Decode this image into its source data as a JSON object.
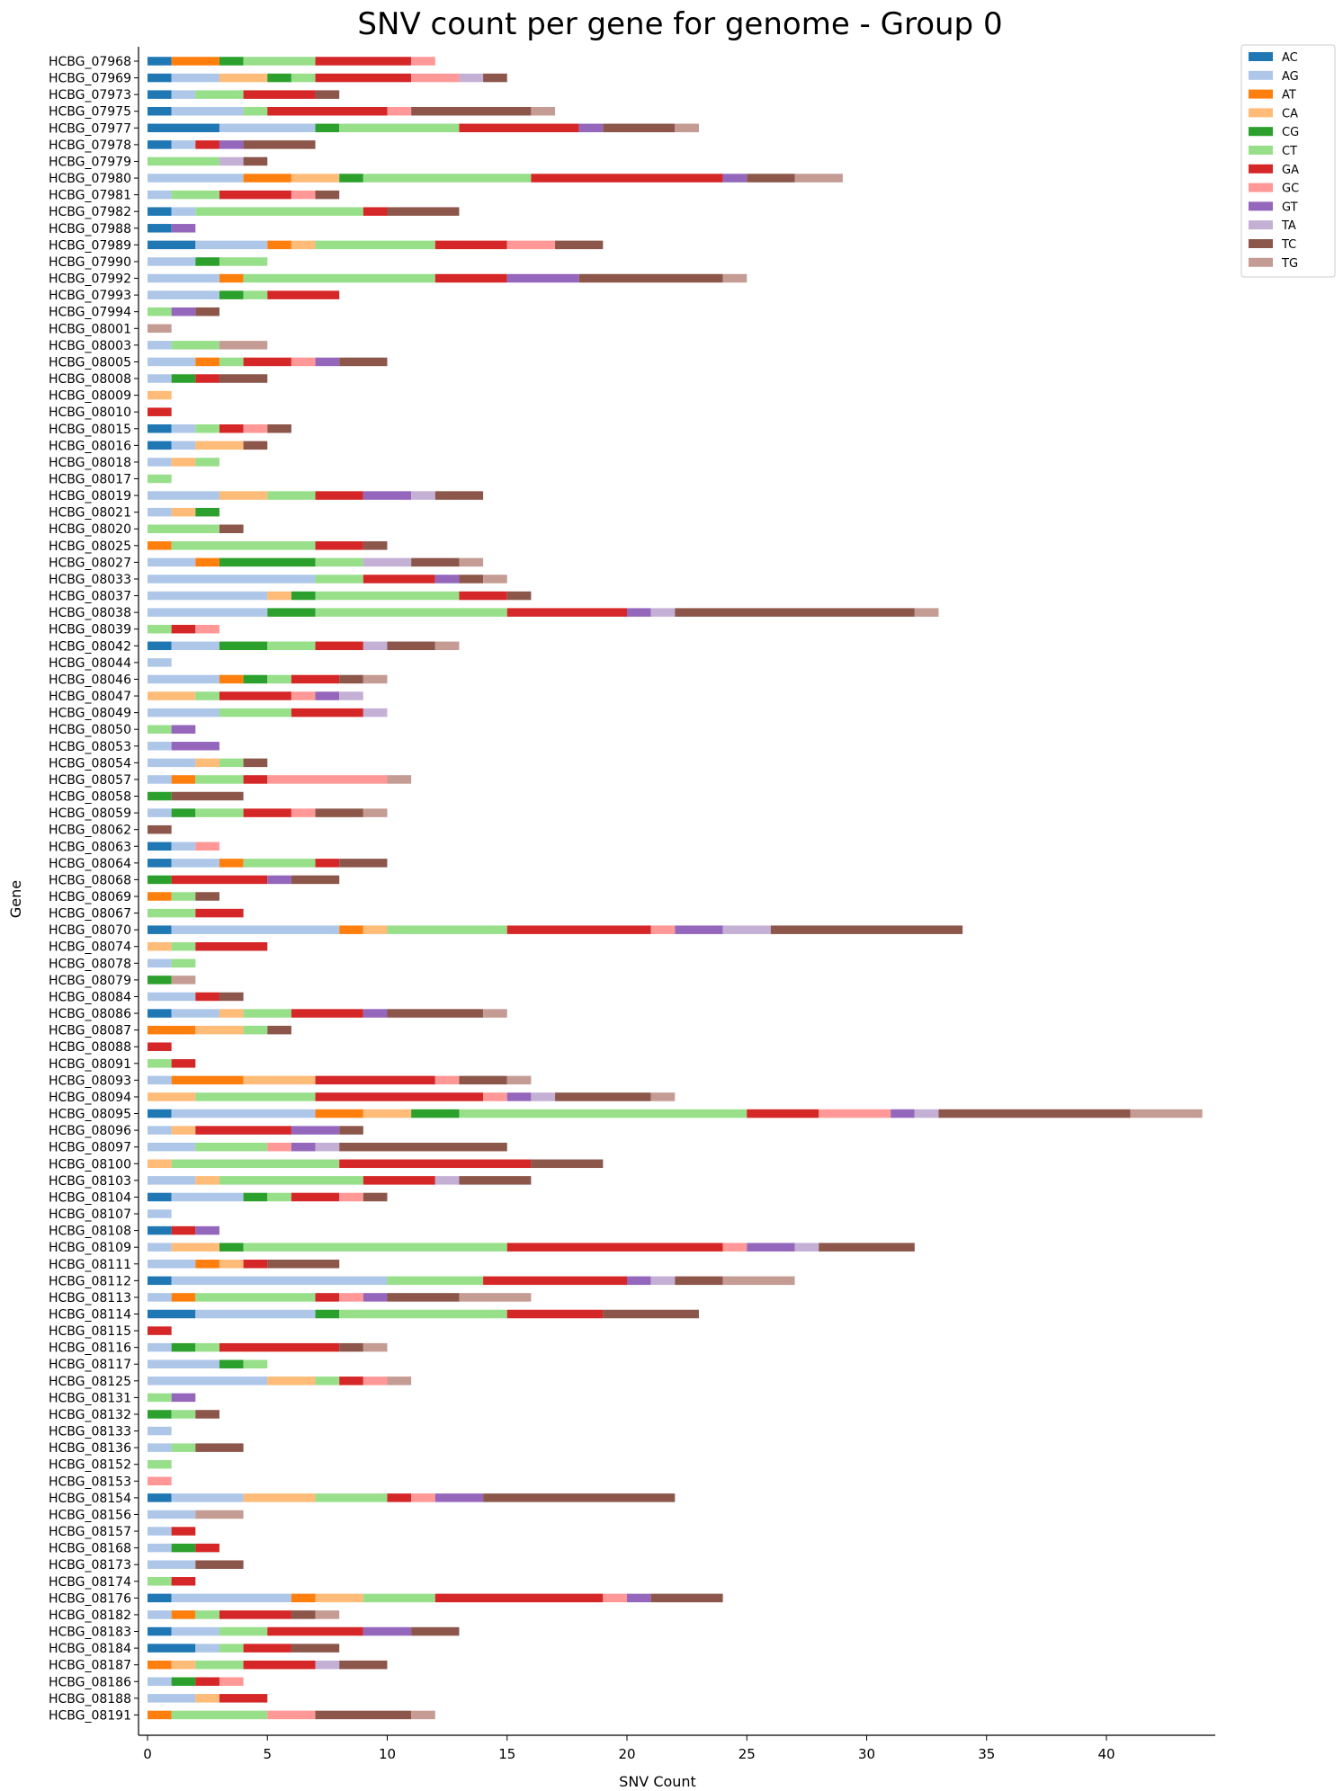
{
  "chart_data": {
    "type": "bar",
    "orientation": "horizontal",
    "stacked": true,
    "title": "SNV count per gene for genome - Group 0",
    "xlabel": "SNV Count",
    "ylabel": "Gene",
    "xlim": [
      0,
      44
    ],
    "xticks": [
      0,
      5,
      10,
      15,
      20,
      25,
      30,
      35,
      40
    ],
    "grid": false,
    "legend_position": "top-right outside",
    "series_order": [
      "AC",
      "AG",
      "AT",
      "CA",
      "CG",
      "CT",
      "GA",
      "GC",
      "GT",
      "TA",
      "TC",
      "TG"
    ],
    "series_colors": {
      "AC": "#1f77b4",
      "AG": "#aec7e8",
      "AT": "#ff7f0e",
      "CA": "#ffbb78",
      "CG": "#2ca02c",
      "CT": "#98df8a",
      "GA": "#d62728",
      "GC": "#ff9896",
      "GT": "#9467bd",
      "TA": "#c5b0d5",
      "TC": "#8c564b",
      "TG": "#c49c94"
    },
    "genes": [
      {
        "name": "HCBG_07968",
        "counts": {
          "AC": 1,
          "AT": 2,
          "CG": 1,
          "CT": 3,
          "GA": 4,
          "GC": 1
        }
      },
      {
        "name": "HCBG_07969",
        "counts": {
          "AC": 1,
          "AG": 2,
          "CA": 2,
          "CG": 1,
          "CT": 1,
          "GA": 4,
          "GC": 2,
          "TA": 1,
          "TC": 1
        }
      },
      {
        "name": "HCBG_07973",
        "counts": {
          "AC": 1,
          "AG": 1,
          "CT": 2,
          "GA": 3,
          "TC": 1
        }
      },
      {
        "name": "HCBG_07975",
        "counts": {
          "AC": 1,
          "AG": 3,
          "CT": 1,
          "GA": 5,
          "GC": 1,
          "TC": 5,
          "TG": 1
        }
      },
      {
        "name": "HCBG_07977",
        "counts": {
          "AC": 3,
          "AG": 4,
          "CG": 1,
          "CT": 5,
          "GA": 5,
          "GT": 1,
          "TC": 3,
          "TG": 1
        }
      },
      {
        "name": "HCBG_07978",
        "counts": {
          "AC": 1,
          "AG": 1,
          "GA": 1,
          "GT": 1,
          "TC": 3
        }
      },
      {
        "name": "HCBG_07979",
        "counts": {
          "CT": 3,
          "TA": 1,
          "TC": 1
        }
      },
      {
        "name": "HCBG_07980",
        "counts": {
          "AG": 4,
          "AT": 2,
          "CA": 2,
          "CG": 1,
          "CT": 7,
          "GA": 8,
          "GT": 1,
          "TC": 2,
          "TG": 2
        }
      },
      {
        "name": "HCBG_07981",
        "counts": {
          "AG": 1,
          "CT": 2,
          "GA": 3,
          "GC": 1,
          "TC": 1
        }
      },
      {
        "name": "HCBG_07982",
        "counts": {
          "AC": 1,
          "AG": 1,
          "CT": 7,
          "GA": 1,
          "TC": 3
        }
      },
      {
        "name": "HCBG_07988",
        "counts": {
          "AC": 1,
          "GT": 1
        }
      },
      {
        "name": "HCBG_07989",
        "counts": {
          "AC": 2,
          "AG": 3,
          "AT": 1,
          "CA": 1,
          "CT": 5,
          "GA": 3,
          "GC": 2,
          "TC": 2
        }
      },
      {
        "name": "HCBG_07990",
        "counts": {
          "AG": 2,
          "CG": 1,
          "CT": 2
        }
      },
      {
        "name": "HCBG_07992",
        "counts": {
          "AG": 3,
          "AT": 1,
          "CT": 8,
          "GA": 3,
          "GT": 3,
          "TC": 6,
          "TG": 1
        }
      },
      {
        "name": "HCBG_07993",
        "counts": {
          "AG": 3,
          "CG": 1,
          "CT": 1,
          "GA": 3
        }
      },
      {
        "name": "HCBG_07994",
        "counts": {
          "CT": 1,
          "GT": 1,
          "TC": 1
        }
      },
      {
        "name": "HCBG_08001",
        "counts": {
          "TG": 1
        }
      },
      {
        "name": "HCBG_08003",
        "counts": {
          "AG": 1,
          "CT": 2,
          "TG": 2
        }
      },
      {
        "name": "HCBG_08005",
        "counts": {
          "AG": 2,
          "AT": 1,
          "CT": 1,
          "GA": 2,
          "GC": 1,
          "GT": 1,
          "TC": 2
        }
      },
      {
        "name": "HCBG_08008",
        "counts": {
          "AG": 1,
          "CG": 1,
          "GA": 1,
          "TC": 2
        }
      },
      {
        "name": "HCBG_08009",
        "counts": {
          "CA": 1
        }
      },
      {
        "name": "HCBG_08010",
        "counts": {
          "GA": 1
        }
      },
      {
        "name": "HCBG_08015",
        "counts": {
          "AC": 1,
          "AG": 1,
          "CT": 1,
          "GA": 1,
          "GC": 1,
          "TC": 1
        }
      },
      {
        "name": "HCBG_08016",
        "counts": {
          "AC": 1,
          "AG": 1,
          "CA": 2,
          "TC": 1
        }
      },
      {
        "name": "HCBG_08018",
        "counts": {
          "AG": 1,
          "CA": 1,
          "CT": 1
        }
      },
      {
        "name": "HCBG_08017",
        "counts": {
          "CT": 1
        }
      },
      {
        "name": "HCBG_08019",
        "counts": {
          "AG": 3,
          "CA": 2,
          "CT": 2,
          "GA": 2,
          "GT": 2,
          "TA": 1,
          "TC": 2
        }
      },
      {
        "name": "HCBG_08021",
        "counts": {
          "AG": 1,
          "CA": 1,
          "CG": 1
        }
      },
      {
        "name": "HCBG_08020",
        "counts": {
          "CT": 3,
          "TC": 1
        }
      },
      {
        "name": "HCBG_08025",
        "counts": {
          "AT": 1,
          "CT": 6,
          "GA": 2,
          "TC": 1
        }
      },
      {
        "name": "HCBG_08027",
        "counts": {
          "AG": 2,
          "AT": 1,
          "CG": 4,
          "CT": 2,
          "TA": 2,
          "TC": 2,
          "TG": 1
        }
      },
      {
        "name": "HCBG_08033",
        "counts": {
          "AG": 7,
          "CT": 2,
          "GA": 3,
          "GT": 1,
          "TC": 1,
          "TG": 1
        }
      },
      {
        "name": "HCBG_08037",
        "counts": {
          "AG": 5,
          "CA": 1,
          "CG": 1,
          "CT": 6,
          "GA": 2,
          "TC": 1
        }
      },
      {
        "name": "HCBG_08038",
        "counts": {
          "AG": 5,
          "CG": 2,
          "CT": 8,
          "GA": 5,
          "GT": 1,
          "TA": 1,
          "TC": 10,
          "TG": 1
        }
      },
      {
        "name": "HCBG_08039",
        "counts": {
          "CT": 1,
          "GA": 1,
          "GC": 1
        }
      },
      {
        "name": "HCBG_08042",
        "counts": {
          "AC": 1,
          "AG": 2,
          "CG": 2,
          "CT": 2,
          "GA": 2,
          "TA": 1,
          "TC": 2,
          "TG": 1
        }
      },
      {
        "name": "HCBG_08044",
        "counts": {
          "AG": 1
        }
      },
      {
        "name": "HCBG_08046",
        "counts": {
          "AG": 3,
          "AT": 1,
          "CG": 1,
          "CT": 1,
          "GA": 2,
          "TC": 1,
          "TG": 1
        }
      },
      {
        "name": "HCBG_08047",
        "counts": {
          "CA": 2,
          "CT": 1,
          "GA": 3,
          "GC": 1,
          "GT": 1,
          "TA": 1
        }
      },
      {
        "name": "HCBG_08049",
        "counts": {
          "AG": 3,
          "CT": 3,
          "GA": 3,
          "TA": 1
        }
      },
      {
        "name": "HCBG_08050",
        "counts": {
          "CT": 1,
          "GT": 1
        }
      },
      {
        "name": "HCBG_08053",
        "counts": {
          "AG": 1,
          "GT": 2
        }
      },
      {
        "name": "HCBG_08054",
        "counts": {
          "AG": 2,
          "CA": 1,
          "CT": 1,
          "TC": 1
        }
      },
      {
        "name": "HCBG_08057",
        "counts": {
          "AG": 1,
          "AT": 1,
          "CT": 2,
          "GA": 1,
          "GC": 5,
          "TG": 1
        }
      },
      {
        "name": "HCBG_08058",
        "counts": {
          "CG": 1,
          "TC": 3
        }
      },
      {
        "name": "HCBG_08059",
        "counts": {
          "AG": 1,
          "CG": 1,
          "CT": 2,
          "GA": 2,
          "GC": 1,
          "TC": 2,
          "TG": 1
        }
      },
      {
        "name": "HCBG_08062",
        "counts": {
          "TC": 1
        }
      },
      {
        "name": "HCBG_08063",
        "counts": {
          "AC": 1,
          "AG": 1,
          "GC": 1
        }
      },
      {
        "name": "HCBG_08064",
        "counts": {
          "AC": 1,
          "AG": 2,
          "AT": 1,
          "CT": 3,
          "GA": 1,
          "TC": 2
        }
      },
      {
        "name": "HCBG_08068",
        "counts": {
          "CG": 1,
          "GA": 4,
          "GT": 1,
          "TC": 2
        }
      },
      {
        "name": "HCBG_08069",
        "counts": {
          "AT": 1,
          "CT": 1,
          "TC": 1
        }
      },
      {
        "name": "HCBG_08067",
        "counts": {
          "CT": 2,
          "GA": 2
        }
      },
      {
        "name": "HCBG_08070",
        "counts": {
          "AC": 1,
          "AG": 7,
          "AT": 1,
          "CA": 1,
          "CT": 5,
          "GA": 6,
          "GC": 1,
          "GT": 2,
          "TA": 2,
          "TC": 8
        }
      },
      {
        "name": "HCBG_08074",
        "counts": {
          "CA": 1,
          "CT": 1,
          "GA": 3
        }
      },
      {
        "name": "HCBG_08078",
        "counts": {
          "AG": 1,
          "CT": 1
        }
      },
      {
        "name": "HCBG_08079",
        "counts": {
          "CG": 1,
          "TG": 1
        }
      },
      {
        "name": "HCBG_08084",
        "counts": {
          "AG": 2,
          "GA": 1,
          "TC": 1
        }
      },
      {
        "name": "HCBG_08086",
        "counts": {
          "AC": 1,
          "AG": 2,
          "CA": 1,
          "CT": 2,
          "GA": 3,
          "GT": 1,
          "TC": 4,
          "TG": 1
        }
      },
      {
        "name": "HCBG_08087",
        "counts": {
          "AT": 2,
          "CA": 2,
          "CT": 1,
          "TC": 1
        }
      },
      {
        "name": "HCBG_08088",
        "counts": {
          "GA": 1
        }
      },
      {
        "name": "HCBG_08091",
        "counts": {
          "CT": 1,
          "GA": 1
        }
      },
      {
        "name": "HCBG_08093",
        "counts": {
          "AG": 1,
          "AT": 3,
          "CA": 3,
          "GA": 5,
          "GC": 1,
          "TC": 2,
          "TG": 1
        }
      },
      {
        "name": "HCBG_08094",
        "counts": {
          "CA": 2,
          "CT": 5,
          "GA": 7,
          "GC": 1,
          "GT": 1,
          "TA": 1,
          "TC": 4,
          "TG": 1
        }
      },
      {
        "name": "HCBG_08095",
        "counts": {
          "AC": 1,
          "AG": 6,
          "AT": 2,
          "CA": 2,
          "CG": 2,
          "CT": 12,
          "GA": 3,
          "GC": 3,
          "GT": 1,
          "TA": 1,
          "TC": 8,
          "TG": 3
        }
      },
      {
        "name": "HCBG_08096",
        "counts": {
          "AG": 1,
          "CA": 1,
          "GA": 4,
          "GT": 2,
          "TC": 1
        }
      },
      {
        "name": "HCBG_08097",
        "counts": {
          "AG": 2,
          "CT": 3,
          "GC": 1,
          "GT": 1,
          "TA": 1,
          "TC": 7
        }
      },
      {
        "name": "HCBG_08100",
        "counts": {
          "CA": 1,
          "CT": 7,
          "GA": 8,
          "TC": 3
        }
      },
      {
        "name": "HCBG_08103",
        "counts": {
          "AG": 2,
          "CA": 1,
          "CT": 6,
          "GA": 3,
          "TA": 1,
          "TC": 3
        }
      },
      {
        "name": "HCBG_08104",
        "counts": {
          "AC": 1,
          "AG": 3,
          "CG": 1,
          "CT": 1,
          "GA": 2,
          "GC": 1,
          "TC": 1
        }
      },
      {
        "name": "HCBG_08107",
        "counts": {
          "AG": 1
        }
      },
      {
        "name": "HCBG_08108",
        "counts": {
          "AC": 1,
          "GA": 1,
          "GT": 1
        }
      },
      {
        "name": "HCBG_08109",
        "counts": {
          "AG": 1,
          "CA": 2,
          "CG": 1,
          "CT": 11,
          "GA": 9,
          "GC": 1,
          "GT": 2,
          "TA": 1,
          "TC": 4
        }
      },
      {
        "name": "HCBG_08111",
        "counts": {
          "AG": 2,
          "AT": 1,
          "CA": 1,
          "GA": 1,
          "TC": 3
        }
      },
      {
        "name": "HCBG_08112",
        "counts": {
          "AC": 1,
          "AG": 9,
          "CT": 4,
          "GA": 6,
          "GT": 1,
          "TA": 1,
          "TC": 2,
          "TG": 3
        }
      },
      {
        "name": "HCBG_08113",
        "counts": {
          "AG": 1,
          "AT": 1,
          "CT": 5,
          "GA": 1,
          "GC": 1,
          "GT": 1,
          "TC": 3,
          "TG": 3
        }
      },
      {
        "name": "HCBG_08114",
        "counts": {
          "AC": 2,
          "AG": 5,
          "CG": 1,
          "CT": 7,
          "GA": 4,
          "TC": 4
        }
      },
      {
        "name": "HCBG_08115",
        "counts": {
          "GA": 1
        }
      },
      {
        "name": "HCBG_08116",
        "counts": {
          "AG": 1,
          "CG": 1,
          "CT": 1,
          "GA": 5,
          "TC": 1,
          "TG": 1
        }
      },
      {
        "name": "HCBG_08117",
        "counts": {
          "AG": 3,
          "CG": 1,
          "CT": 1
        }
      },
      {
        "name": "HCBG_08125",
        "counts": {
          "AG": 5,
          "CA": 2,
          "CT": 1,
          "GA": 1,
          "GC": 1,
          "TG": 1
        }
      },
      {
        "name": "HCBG_08131",
        "counts": {
          "CT": 1,
          "GT": 1
        }
      },
      {
        "name": "HCBG_08132",
        "counts": {
          "CG": 1,
          "CT": 1,
          "TC": 1
        }
      },
      {
        "name": "HCBG_08133",
        "counts": {
          "AG": 1
        }
      },
      {
        "name": "HCBG_08136",
        "counts": {
          "AG": 1,
          "CT": 1,
          "TC": 2
        }
      },
      {
        "name": "HCBG_08152",
        "counts": {
          "CT": 1
        }
      },
      {
        "name": "HCBG_08153",
        "counts": {
          "GC": 1
        }
      },
      {
        "name": "HCBG_08154",
        "counts": {
          "AC": 1,
          "AG": 3,
          "CA": 3,
          "CT": 3,
          "GA": 1,
          "GC": 1,
          "GT": 2,
          "TC": 8
        }
      },
      {
        "name": "HCBG_08156",
        "counts": {
          "AG": 2,
          "TG": 2
        }
      },
      {
        "name": "HCBG_08157",
        "counts": {
          "AG": 1,
          "GA": 1
        }
      },
      {
        "name": "HCBG_08168",
        "counts": {
          "AG": 1,
          "CG": 1,
          "GA": 1
        }
      },
      {
        "name": "HCBG_08173",
        "counts": {
          "AG": 2,
          "TC": 2
        }
      },
      {
        "name": "HCBG_08174",
        "counts": {
          "CT": 1,
          "GA": 1
        }
      },
      {
        "name": "HCBG_08176",
        "counts": {
          "AC": 1,
          "AG": 5,
          "AT": 1,
          "CA": 2,
          "CT": 3,
          "GA": 7,
          "GC": 1,
          "GT": 1,
          "TC": 3
        }
      },
      {
        "name": "HCBG_08182",
        "counts": {
          "AG": 1,
          "AT": 1,
          "CT": 1,
          "GA": 3,
          "TC": 1,
          "TG": 1
        }
      },
      {
        "name": "HCBG_08183",
        "counts": {
          "AC": 1,
          "AG": 2,
          "CT": 2,
          "GA": 4,
          "GT": 2,
          "TC": 2
        }
      },
      {
        "name": "HCBG_08184",
        "counts": {
          "AC": 2,
          "AG": 1,
          "CT": 1,
          "GA": 2,
          "TC": 2
        }
      },
      {
        "name": "HCBG_08187",
        "counts": {
          "AT": 1,
          "CA": 1,
          "CT": 2,
          "GA": 3,
          "TA": 1,
          "TC": 2
        }
      },
      {
        "name": "HCBG_08186",
        "counts": {
          "AG": 1,
          "CG": 1,
          "GA": 1,
          "GC": 1
        }
      },
      {
        "name": "HCBG_08188",
        "counts": {
          "AG": 2,
          "CA": 1,
          "GA": 2
        }
      },
      {
        "name": "HCBG_08191",
        "counts": {
          "AT": 1,
          "CT": 4,
          "GC": 2,
          "TC": 4,
          "TG": 1
        }
      }
    ]
  }
}
